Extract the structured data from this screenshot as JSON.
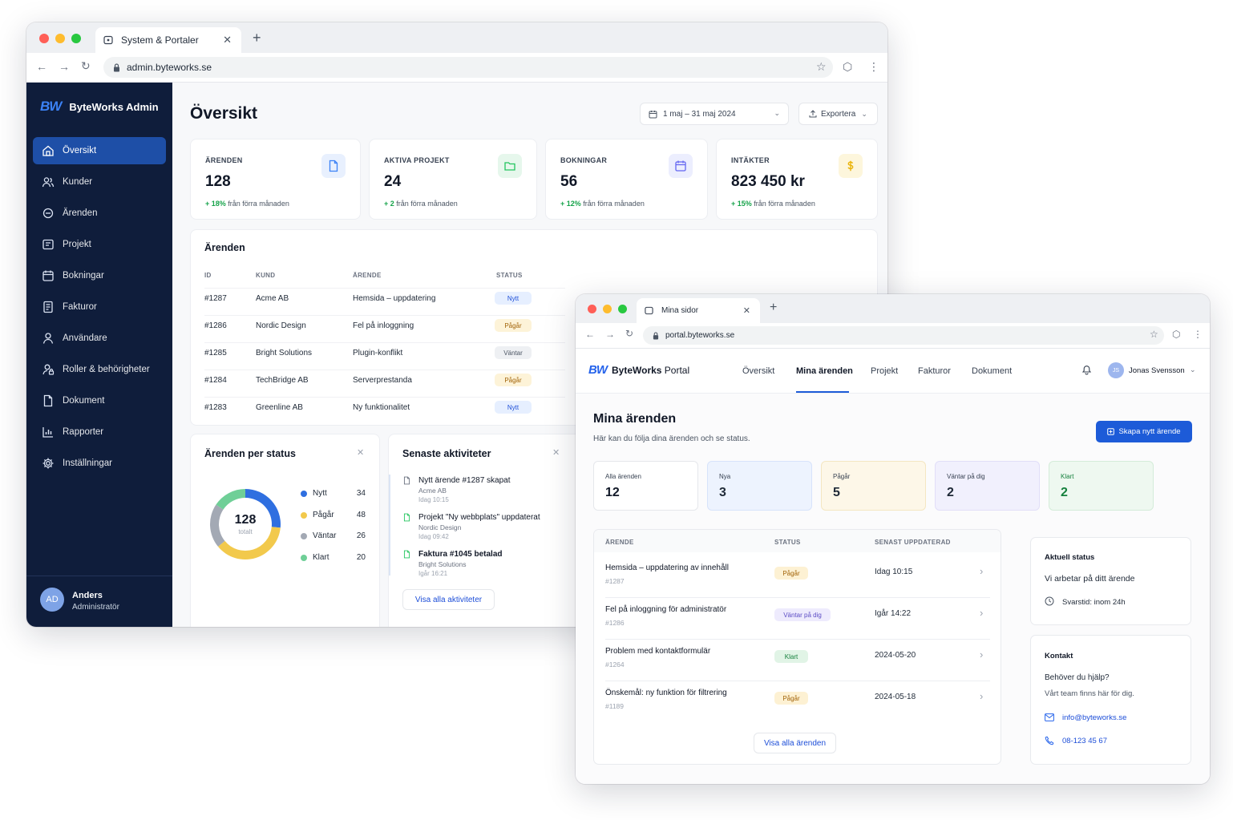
{
  "admin_window": {
    "tab_title": "System & Portaler",
    "url": "admin.byteworks.se",
    "brand": {
      "logo": "BW",
      "name": "ByteWorks Admin"
    },
    "sidebar": {
      "items": [
        {
          "label": "Översikt",
          "icon": "home-icon"
        },
        {
          "label": "Kunder",
          "icon": "users-icon"
        },
        {
          "label": "Ärenden",
          "icon": "ticket-icon"
        },
        {
          "label": "Projekt",
          "icon": "project-icon"
        },
        {
          "label": "Bokningar",
          "icon": "calendar-icon"
        },
        {
          "label": "Fakturor",
          "icon": "invoice-icon"
        },
        {
          "label": "Användare",
          "icon": "user-icon"
        },
        {
          "label": "Roller & behörigheter",
          "icon": "roles-icon"
        },
        {
          "label": "Dokument",
          "icon": "document-icon"
        },
        {
          "label": "Rapporter",
          "icon": "chart-icon"
        },
        {
          "label": "Inställningar",
          "icon": "gear-icon"
        }
      ],
      "user": {
        "initials": "AD",
        "name": "Anders",
        "role": "Administratör"
      }
    },
    "page_title": "Översikt",
    "date_range": "1 maj – 31 maj 2024",
    "export_label": "Exportera",
    "stats": [
      {
        "label": "ÄRENDEN",
        "value": "128",
        "delta": "+ 18%",
        "delta_text": " från förra månaden",
        "icon": "document-icon",
        "accent": "#3b82f6"
      },
      {
        "label": "AKTIVA PROJEKT",
        "value": "24",
        "delta": "+ 2",
        "delta_text": " från förra månaden",
        "icon": "folder-icon",
        "accent": "#22c55e"
      },
      {
        "label": "BOKNINGAR",
        "value": "56",
        "delta": "+ 12%",
        "delta_text": " från förra månaden",
        "icon": "calendar-icon",
        "accent": "#6366f1"
      },
      {
        "label": "INTÄKTER",
        "value": "823 450 kr",
        "delta": "+ 15%",
        "delta_text": " från förra månaden",
        "icon": "dollar-icon",
        "accent": "#eab308"
      }
    ],
    "tickets": {
      "title": "Ärenden",
      "columns": [
        "ID",
        "KUND",
        "ÄRENDE",
        "STATUS"
      ],
      "rows": [
        {
          "id": "#1287",
          "customer": "Acme AB",
          "subject": "Hemsida – uppdatering",
          "status": "Nytt",
          "kind": "new"
        },
        {
          "id": "#1286",
          "customer": "Nordic Design",
          "subject": "Fel på inloggning",
          "status": "Pågår",
          "kind": "progress"
        },
        {
          "id": "#1285",
          "customer": "Bright Solutions",
          "subject": "Plugin-konflikt",
          "status": "Väntar",
          "kind": "waiting"
        },
        {
          "id": "#1284",
          "customer": "TechBridge AB",
          "subject": "Serverprestanda",
          "status": "Pågår",
          "kind": "progress"
        },
        {
          "id": "#1283",
          "customer": "Greenline AB",
          "subject": "Ny funktionalitet",
          "status": "Nytt",
          "kind": "new"
        }
      ]
    },
    "status_card": {
      "title": "Ärenden per status",
      "total": "128",
      "total_label": "totalt",
      "legend": [
        {
          "label": "Nytt",
          "value": "34",
          "color": "#2f6fe0"
        },
        {
          "label": "Pågår",
          "value": "48",
          "color": "#f2c94c"
        },
        {
          "label": "Väntar",
          "value": "26",
          "color": "#a3a9b4"
        },
        {
          "label": "Klart",
          "value": "20",
          "color": "#6fcf97"
        }
      ]
    },
    "activity": {
      "title": "Senaste aktiviteter",
      "items": [
        {
          "title": "Nytt ärende #1287 skapat",
          "sub": "Acme AB",
          "time": "Idag 10:15",
          "bold": false
        },
        {
          "title": "Projekt \"Ny webbplats\" uppdaterat",
          "sub": "Nordic Design",
          "time": "Idag 09:42",
          "bold": false
        },
        {
          "title": "Faktura #1045 betalad",
          "sub": "Bright Solutions",
          "time": "Igår 16:21",
          "bold": true
        }
      ],
      "button": "Visa alla aktiviteter"
    }
  },
  "portal_window": {
    "tab_title": "Mina sidor",
    "url": "portal.byteworks.se",
    "brand": {
      "logo": "BW",
      "name_bold": "ByteWorks",
      "name_rest": " Portal"
    },
    "nav": [
      "Översikt",
      "Mina ärenden",
      "Projekt",
      "Fakturor",
      "Dokument"
    ],
    "user": {
      "initials": "JS",
      "name": "Jonas Svensson"
    },
    "page_title": "Mina ärenden",
    "subtitle": "Här kan du följa dina ärenden och se status.",
    "create_button": "Skapa nytt ärende",
    "tiles": [
      {
        "label": "Alla ärenden",
        "value": "12",
        "bg": "#ffffff",
        "fg": "#111827"
      },
      {
        "label": "Nya",
        "value": "3",
        "bg": "#edf3fe",
        "fg": "#1f2937"
      },
      {
        "label": "Pågår",
        "value": "5",
        "bg": "#fdf7e8",
        "fg": "#1f2937"
      },
      {
        "label": "Väntar på dig",
        "value": "2",
        "bg": "#f1f0fd",
        "fg": "#1f2937"
      },
      {
        "label": "Klart",
        "value": "2",
        "bg": "#eef8f0",
        "fg": "#15803d"
      }
    ],
    "table": {
      "columns": [
        "ÄRENDE",
        "STATUS",
        "SENAST UPPDATERAD"
      ],
      "rows": [
        {
          "title": "Hemsida – uppdatering av innehåll",
          "id": "#1287",
          "status": "Pågår",
          "kind": "progress",
          "updated": "Idag 10:15"
        },
        {
          "title": "Fel på inloggning för administratör",
          "id": "#1286",
          "status": "Väntar på dig",
          "kind": "waiting",
          "updated": "Igår 14:22"
        },
        {
          "title": "Problem med kontaktformulär",
          "id": "#1264",
          "status": "Klart",
          "kind": "done",
          "updated": "2024-05-20"
        },
        {
          "title": "Önskemål: ny funktion för filtrering",
          "id": "#1189",
          "status": "Pågår",
          "kind": "progress",
          "updated": "2024-05-18"
        }
      ],
      "button": "Visa alla ärenden"
    },
    "status_box": {
      "title": "Aktuell status",
      "text": "Vi arbetar på ditt ärende",
      "response": "Svarstid: inom 24h"
    },
    "contact": {
      "title": "Kontakt",
      "q": "Behöver du hjälp?",
      "text": "Vårt team finns här för dig.",
      "email": "info@byteworks.se",
      "phone": "08-123 45 67"
    }
  }
}
